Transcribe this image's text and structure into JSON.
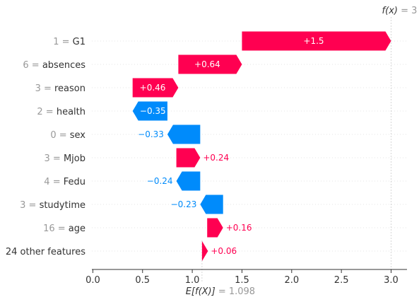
{
  "chart_data": {
    "type": "waterfall",
    "title": "",
    "fx_label": "f(x)",
    "fx_value": "3",
    "base_label": "E[f(X)]",
    "base_value": 1.098,
    "base_value_text": "1.098",
    "xlim": [
      -0.01,
      3.16
    ],
    "xticks": [
      0.0,
      0.5,
      1.0,
      1.5,
      2.0,
      2.5,
      3.0
    ],
    "xtick_labels": [
      "0.0",
      "0.5",
      "1.0",
      "1.5",
      "2.0",
      "2.5",
      "3.0"
    ],
    "features": [
      {
        "value": "1",
        "name": "G1",
        "shap": 1.5,
        "label": "+1.5",
        "start": 1.5,
        "end": 3.0
      },
      {
        "value": "6",
        "name": "absences",
        "shap": 0.64,
        "label": "+0.64",
        "start": 0.86,
        "end": 1.5
      },
      {
        "value": "3",
        "name": "reason",
        "shap": 0.46,
        "label": "+0.46",
        "start": 0.4,
        "end": 0.86
      },
      {
        "value": "2",
        "name": "health",
        "shap": -0.35,
        "label": "−0.35",
        "start": 0.75,
        "end": 0.4
      },
      {
        "value": "0",
        "name": "sex",
        "shap": -0.33,
        "label": "−0.33",
        "start": 1.08,
        "end": 0.75
      },
      {
        "value": "3",
        "name": "Mjob",
        "shap": 0.24,
        "label": "+0.24",
        "start": 0.84,
        "end": 1.08
      },
      {
        "value": "4",
        "name": "Fedu",
        "shap": -0.24,
        "label": "−0.24",
        "start": 1.08,
        "end": 0.84
      },
      {
        "value": "3",
        "name": "studytime",
        "shap": -0.23,
        "label": "−0.23",
        "start": 1.31,
        "end": 1.08
      },
      {
        "value": "16",
        "name": "age",
        "shap": 0.16,
        "label": "+0.16",
        "start": 1.15,
        "end": 1.31
      },
      {
        "value": "",
        "name": "24 other features",
        "shap": 0.06,
        "label": "+0.06",
        "start": 1.098,
        "end": 1.158
      }
    ]
  },
  "colors": {
    "positive": "#ff0051",
    "negative": "#008bfb",
    "axis": "#333333",
    "muted": "#999999",
    "grid": "#cccccc"
  }
}
